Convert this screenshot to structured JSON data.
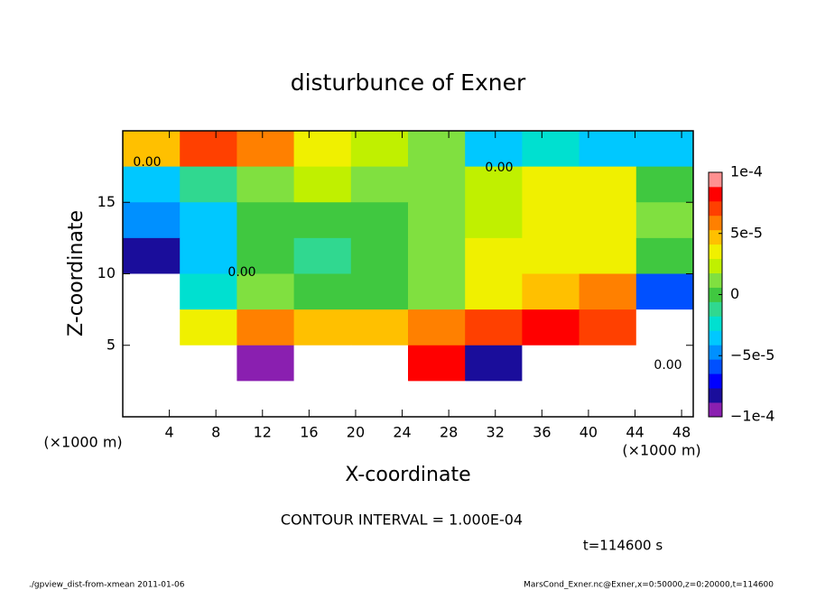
{
  "chart_data": {
    "type": "heatmap",
    "title": "disturbunce of Exner",
    "x_label": "X-coordinate",
    "y_label": "Z-coordinate",
    "x_unit": "(×1000 m)",
    "y_unit": "(×1000 m)",
    "xlim": [
      0,
      49
    ],
    "xticks": [
      4,
      8,
      12,
      16,
      20,
      24,
      28,
      32,
      36,
      40,
      44,
      48
    ],
    "ylim": [
      0,
      20
    ],
    "yticks": [
      5,
      10,
      15
    ],
    "x": [
      2.45,
      7.35,
      12.25,
      17.15,
      22.05,
      26.95,
      31.85,
      36.75,
      41.65,
      46.55
    ],
    "y": [
      18.75,
      16.25,
      13.75,
      11.25,
      8.75,
      6.25,
      3.75,
      1.25
    ],
    "z": [
      [
        5e-05,
        7e-05,
        6e-05,
        4e-05,
        2e-05,
        1e-05,
        -3e-05,
        -2e-05,
        -3e-05,
        -4e-05
      ],
      [
        -3e-05,
        -1e-05,
        1e-05,
        2e-05,
        1e-05,
        1e-05,
        2e-05,
        3e-05,
        3e-05,
        0
      ],
      [
        -5e-05,
        -3e-05,
        0,
        0,
        0,
        1e-05,
        2e-05,
        3e-05,
        3e-05,
        1e-05
      ],
      [
        -8e-05,
        -4e-05,
        0,
        -1e-05,
        0,
        1e-05,
        3e-05,
        4e-05,
        3e-05,
        0
      ],
      [
        -0.00011,
        -2e-05,
        1e-05,
        0,
        0,
        1e-05,
        4e-05,
        5e-05,
        6e-05,
        -6e-05
      ],
      [
        -0.00011,
        3e-05,
        6e-05,
        5e-05,
        5e-05,
        6e-05,
        7e-05,
        8e-05,
        7e-05,
        -0.00011
      ],
      [
        -0.00011,
        0.00011,
        -9e-05,
        0.00011,
        -0.00011,
        8e-05,
        -8e-05,
        0.00011,
        0.00011,
        -0.00011
      ],
      [
        -0.00011,
        0.00011,
        0.00011,
        -0.00011,
        0.00011,
        -0.00011,
        0.00011,
        -0.00011,
        0.00012,
        0.00011
      ]
    ],
    "clim": [
      -0.0001,
      0.0001
    ],
    "colorbar_ticks": [
      {
        "value": -0.0001,
        "label": "−1e-4"
      },
      {
        "value": -5e-05,
        "label": "−5e-5"
      },
      0,
      {
        "value": 5e-05,
        "label": "5e-5"
      },
      {
        "value": 0.0001,
        "label": "1e-4"
      }
    ],
    "colormap": [
      "#8a1fb0",
      "#1a0d9b",
      "#0000ff",
      "#0050ff",
      "#0090ff",
      "#00c8ff",
      "#00e0d0",
      "#30d890",
      "#40c840",
      "#80e040",
      "#c0f000",
      "#f0f000",
      "#ffc000",
      "#ff8000",
      "#ff4000",
      "#ff0000",
      "#ff9090"
    ],
    "out_of_range_color": "#ffffff",
    "contour_labels": [
      "0.00",
      "0.00",
      "0.00",
      "0.00"
    ],
    "contour_interval": "CONTOUR INTERVAL = 1.000E-04",
    "time_label": "t=114600 s",
    "footer_left": "./gpview_dist-from-xmean  2011-01-06",
    "footer_right": "MarsCond_Exner.nc@Exner,x=0:50000,z=0:20000,t=114600"
  }
}
